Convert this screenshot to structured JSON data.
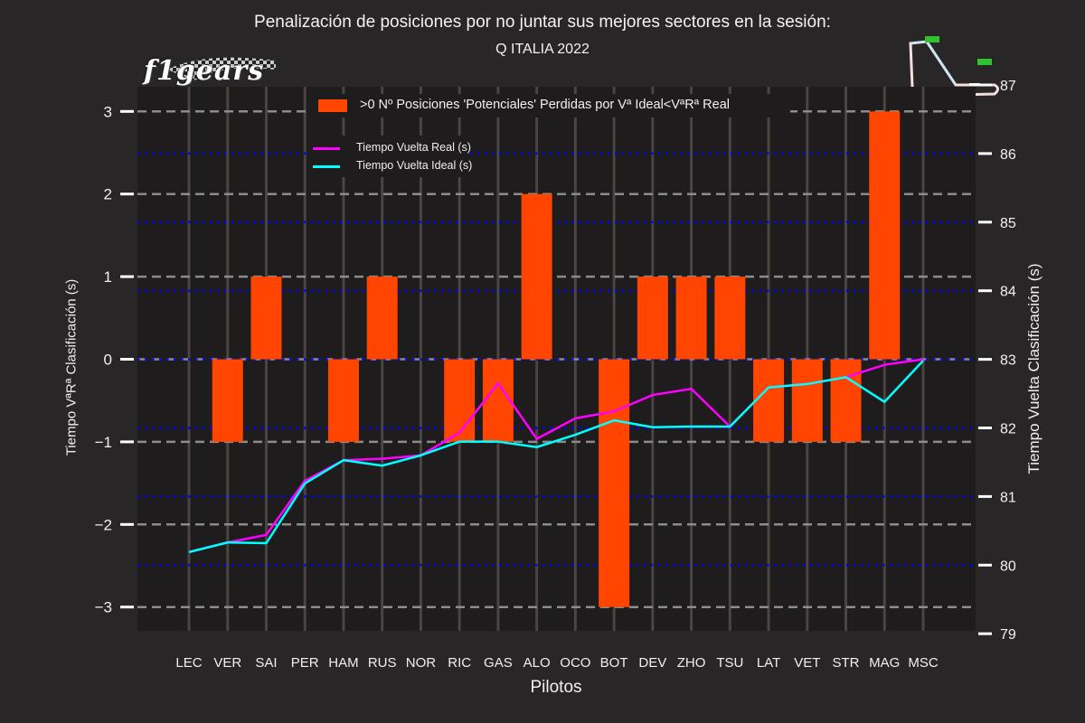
{
  "header": {
    "title": "Penalización de posiciones por no juntar sus mejores sectores en la sesión:",
    "subtitle": "Q ITALIA 2022",
    "logo_text": "f1gears",
    "logo_icon": "checkered-flag-icon",
    "track_icon": "monza-track-map-icon"
  },
  "legend": {
    "bar_label": ">0 Nº Posiciones 'Potenciales' Perdidas por Vª Ideal<VªRª Real",
    "real_label": "Tiempo Vuelta Real (s)",
    "ideal_label": "Tiempo Vuelta Ideal (s)"
  },
  "colors": {
    "background": "#292627",
    "plot_bg": "#1e1c1c",
    "bar": "#ff4500",
    "real": "#ff00ff",
    "ideal": "#00ffff",
    "grid_dashed": "#8c8c8c",
    "grid_dotted": "#0000ff",
    "vline": "#4a4442"
  },
  "chart_data": {
    "type": "bar+line",
    "title": "Penalización de posiciones por no juntar sus mejores sectores en la sesión:",
    "subtitle": "Q ITALIA 2022",
    "xlabel": "Pilotos",
    "ylabel": "Tiempo VªRª Clasificación (s)",
    "ylabel_right": "Tiempo Vuelta Clasificación (s)",
    "categories": [
      "LEC",
      "VER",
      "SAI",
      "PER",
      "HAM",
      "RUS",
      "NOR",
      "RIC",
      "GAS",
      "ALO",
      "OCO",
      "BOT",
      "DEV",
      "ZHO",
      "TSU",
      "LAT",
      "VET",
      "STR",
      "MAG",
      "MSC"
    ],
    "ylim": [
      -3.3,
      3.3
    ],
    "yticks": [
      -3,
      -2,
      -1,
      0,
      1,
      2,
      3
    ],
    "ylim_right": [
      79,
      87
    ],
    "yticks_right": [
      79,
      80,
      81,
      82,
      83,
      84,
      85,
      86,
      87
    ],
    "grid": true,
    "legend_position": "upper center",
    "series": [
      {
        "name": ">0 Nº Posiciones 'Potenciales' Perdidas por Vª Ideal<VªRª Real",
        "type": "bar",
        "axis": "left",
        "values": [
          0,
          -1,
          1,
          0,
          -1,
          1,
          0,
          -1,
          -1,
          2,
          0,
          -3,
          1,
          1,
          1,
          -1,
          -1,
          -1,
          3,
          0
        ]
      },
      {
        "name": "Tiempo Vuelta Real (s)",
        "type": "line",
        "axis": "right",
        "values": [
          80.19,
          80.33,
          80.44,
          81.23,
          81.53,
          81.55,
          81.6,
          81.93,
          82.65,
          81.84,
          82.14,
          82.24,
          82.48,
          82.57,
          82.02,
          82.59,
          82.64,
          82.74,
          82.92,
          83.0
        ]
      },
      {
        "name": "Tiempo Vuelta Ideal (s)",
        "type": "line",
        "axis": "right",
        "values": [
          80.19,
          80.33,
          80.32,
          81.19,
          81.53,
          81.45,
          81.6,
          81.8,
          81.8,
          81.72,
          81.9,
          82.11,
          82.01,
          82.02,
          82.02,
          82.59,
          82.64,
          82.74,
          82.38,
          82.98
        ]
      }
    ]
  }
}
